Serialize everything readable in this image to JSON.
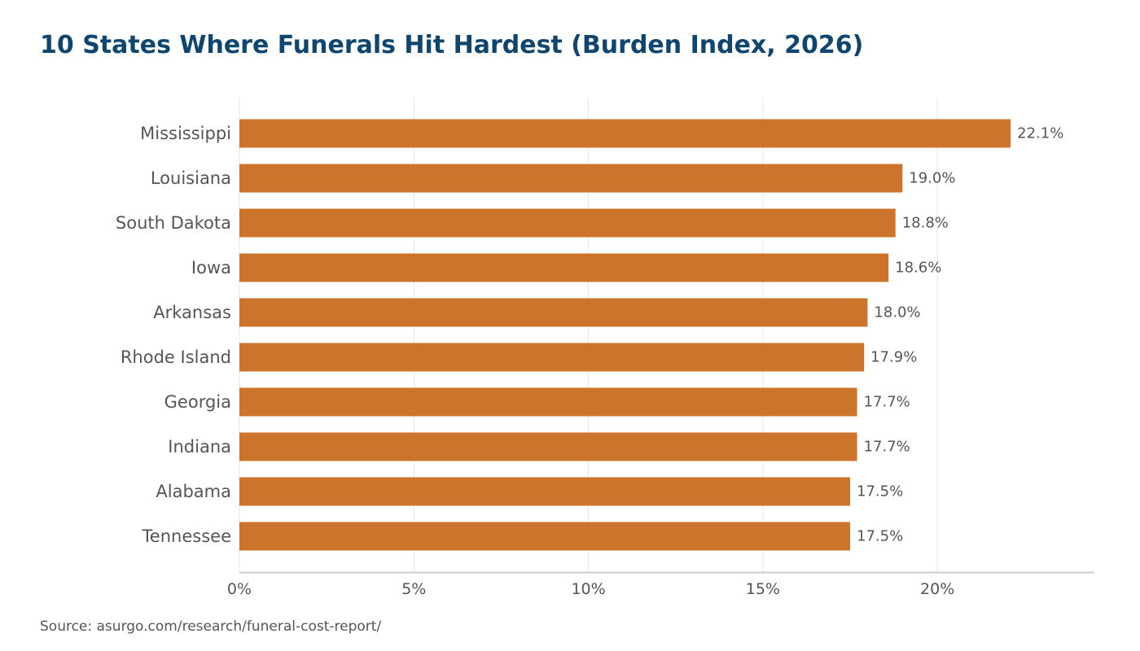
{
  "header": {
    "title": "10 States Where Funerals Hit Hardest (Burden Index, 2026)"
  },
  "footer": {
    "source": "Source: asurgo.com/research/funeral-cost-report/"
  },
  "colors": {
    "bar": "#cc742b",
    "title": "#0f4670",
    "text": "#555555",
    "grid": "#e6e6e6",
    "axis": "#cccccc"
  },
  "chart_data": {
    "type": "bar",
    "orientation": "horizontal",
    "categories": [
      "Mississippi",
      "Louisiana",
      "South Dakota",
      "Iowa",
      "Arkansas",
      "Rhode Island",
      "Georgia",
      "Indiana",
      "Alabama",
      "Tennessee"
    ],
    "values": [
      22.1,
      19.0,
      18.8,
      18.6,
      18.0,
      17.9,
      17.7,
      17.7,
      17.5,
      17.5
    ],
    "value_labels": [
      "22.1%",
      "19.0%",
      "18.8%",
      "18.6%",
      "18.0%",
      "17.9%",
      "17.7%",
      "17.7%",
      "17.5%",
      "17.5%"
    ],
    "x_ticks": [
      0,
      5,
      10,
      15,
      20
    ],
    "x_tick_labels": [
      "0%",
      "5%",
      "10%",
      "15%",
      "20%"
    ],
    "xlim": [
      0,
      24.5
    ],
    "grid": "vertical",
    "legend": "none",
    "title": "10 States Where Funerals Hit Hardest (Burden Index, 2026)",
    "xlabel": "",
    "ylabel": ""
  }
}
